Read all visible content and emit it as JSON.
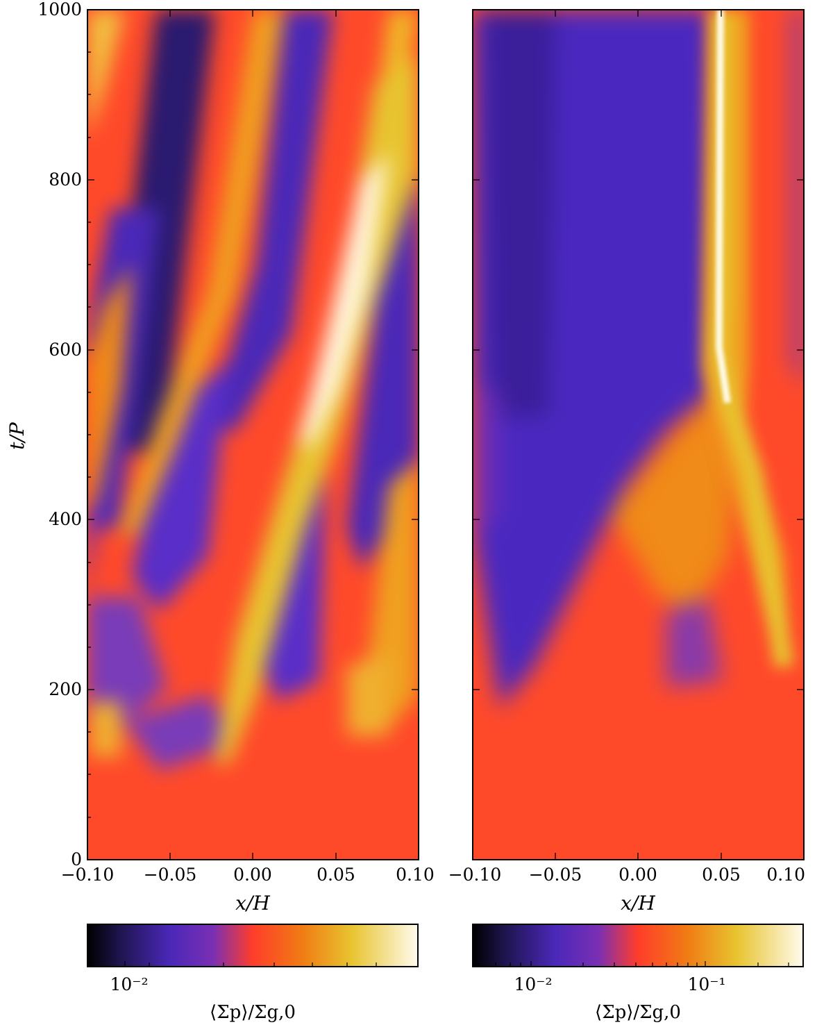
{
  "chart_data": [
    {
      "type": "heatmap",
      "panel": "left",
      "x_range": [
        -0.1,
        0.1
      ],
      "y_range": [
        0,
        1000
      ],
      "xlabel": "x/H",
      "ylabel": "t/P",
      "xtick_labels": [
        "−0.10",
        "−0.05",
        "0.00",
        "0.05",
        "0.10"
      ],
      "ytick_labels": [
        "0",
        "200",
        "400",
        "600",
        "800",
        "1000"
      ],
      "colorbar": {
        "label": "⟨Σp⟩/Σg,0",
        "scale": "log",
        "tick_labels": [
          "10⁻²"
        ],
        "range": [
          0.007,
          0.035
        ]
      },
      "colormap": [
        "#000000",
        "#3a1e8a",
        "#5a2ec8",
        "#ff3d2a",
        "#f09010",
        "#e8c430",
        "#fff8e4"
      ],
      "features": "diagonal bands of high concentration drifting toward +x with increasing time; bright filament near x/H = 0.05 at t/P = 550-800"
    },
    {
      "type": "heatmap",
      "panel": "right",
      "x_range": [
        -0.1,
        0.1
      ],
      "y_range": [
        0,
        1000
      ],
      "xlabel": "x/H",
      "ylabel": "",
      "xtick_labels": [
        "−0.10",
        "−0.05",
        "0.00",
        "0.05",
        "0.10"
      ],
      "colorbar": {
        "label": "⟨Σp⟩/Σg,0",
        "scale": "log",
        "tick_labels": [
          "10⁻²",
          "10⁻¹"
        ],
        "range": [
          0.005,
          0.35
        ]
      },
      "colormap": [
        "#000000",
        "#3a1e8a",
        "#5a2ec8",
        "#ff3d2a",
        "#f09010",
        "#e8c430",
        "#fff8e4"
      ],
      "features": "single concentrated filament forming near x/H = 0.08 around t/P = 200 and settling at x/H = 0.045 after t/P = 550"
    }
  ]
}
